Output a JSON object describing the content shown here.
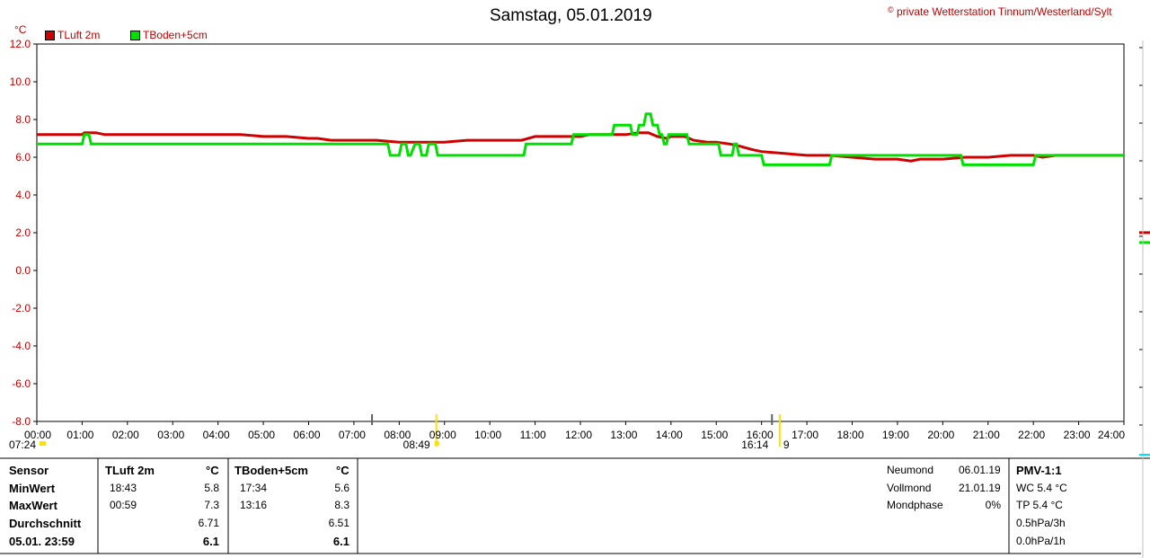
{
  "header": {
    "title": "Samstag, 05.01.2019",
    "copyright_symbol": "©",
    "copyright": "private Wetterstation Tinnum/Westerland/Sylt"
  },
  "chart_data": {
    "type": "line",
    "y_unit": "°C",
    "ylim": [
      -8,
      12
    ],
    "yticks": [
      "12.0",
      "10.0",
      "8.0",
      "6.0",
      "4.0",
      "2.0",
      "0.0",
      "-2.0",
      "-4.0",
      "-6.0",
      "-8.0"
    ],
    "xlim_hours": [
      0,
      24
    ],
    "xticks": [
      "00:00",
      "01:00",
      "02:00",
      "03:00",
      "04:00",
      "05:00",
      "06:00",
      "07:00",
      "08:00",
      "09:00",
      "10:00",
      "11:00",
      "12:00",
      "13:00",
      "14:00",
      "15:00",
      "16:00",
      "17:00",
      "18:00",
      "19:00",
      "20:00",
      "21:00",
      "22:00",
      "23:00",
      "24:00"
    ],
    "grid": true,
    "zero_line_color": "#00e0ff",
    "time_markers": [
      {
        "label": "07:24",
        "hour": 7.4
      },
      {
        "label": "08:49",
        "hour": 8.82
      },
      {
        "label": "16:14",
        "hour": 16.23
      },
      {
        "label": "9",
        "hour": 16.4
      }
    ],
    "series": [
      {
        "name": "TLuft 2m",
        "color": "#d00000",
        "x": [
          0,
          0.5,
          1,
          1.05,
          1.3,
          1.5,
          2,
          3,
          4,
          4.5,
          5,
          5.5,
          6,
          6.2,
          6.5,
          7,
          7.5,
          8,
          8.5,
          9,
          9.5,
          10,
          10.5,
          10.7,
          11,
          11.5,
          12,
          12.2,
          12.5,
          12.8,
          13,
          13.3,
          13.5,
          13.7,
          13.9,
          14,
          14.3,
          14.5,
          14.8,
          15,
          15.3,
          15.5,
          15.8,
          16,
          16.5,
          17,
          17.5,
          18,
          18.5,
          19,
          19.3,
          19.5,
          20,
          20.5,
          20.7,
          21,
          21.5,
          22,
          22.2,
          22.5,
          23,
          23.5,
          24
        ],
        "y": [
          7.2,
          7.2,
          7.2,
          7.3,
          7.3,
          7.2,
          7.2,
          7.2,
          7.2,
          7.2,
          7.1,
          7.1,
          7.0,
          7.0,
          6.9,
          6.9,
          6.9,
          6.8,
          6.8,
          6.8,
          6.9,
          6.9,
          6.9,
          6.9,
          7.1,
          7.1,
          7.1,
          7.2,
          7.2,
          7.2,
          7.2,
          7.3,
          7.3,
          7.1,
          7.0,
          7.1,
          7.1,
          6.9,
          6.8,
          6.8,
          6.7,
          6.6,
          6.4,
          6.3,
          6.2,
          6.1,
          6.1,
          6.0,
          5.9,
          5.9,
          5.8,
          5.9,
          5.9,
          6.0,
          6.0,
          6.0,
          6.1,
          6.1,
          6.0,
          6.1,
          6.1,
          6.1,
          6.1
        ]
      },
      {
        "name": "TBoden+5cm",
        "color": "#00e000",
        "x": [
          0,
          1.0,
          1.05,
          1.15,
          1.2,
          7.75,
          7.8,
          8.0,
          8.05,
          8.15,
          8.2,
          8.25,
          8.35,
          8.45,
          8.5,
          8.6,
          8.65,
          8.8,
          8.85,
          10.75,
          10.8,
          11.8,
          11.85,
          12.7,
          12.75,
          13.1,
          13.15,
          13.25,
          13.3,
          13.4,
          13.45,
          13.55,
          13.6,
          13.7,
          13.75,
          13.8,
          13.85,
          13.9,
          13.95,
          14.35,
          14.4,
          15.05,
          15.1,
          15.35,
          15.4,
          15.45,
          15.5,
          16.0,
          16.05,
          17.5,
          17.55,
          20.4,
          20.45,
          22.0,
          22.05,
          22.15,
          22.2,
          24
        ],
        "y": [
          6.7,
          6.7,
          7.2,
          7.2,
          6.7,
          6.7,
          6.1,
          6.1,
          6.7,
          6.7,
          6.1,
          6.1,
          6.7,
          6.7,
          6.1,
          6.1,
          6.7,
          6.7,
          6.1,
          6.1,
          6.7,
          6.7,
          7.2,
          7.2,
          7.7,
          7.7,
          7.2,
          7.2,
          7.7,
          7.7,
          8.3,
          8.3,
          7.7,
          7.7,
          7.2,
          7.2,
          6.7,
          6.7,
          7.2,
          7.2,
          6.7,
          6.7,
          6.1,
          6.1,
          6.7,
          6.7,
          6.1,
          6.1,
          5.6,
          5.6,
          6.1,
          6.1,
          5.6,
          5.6,
          6.1,
          6.1,
          6.1,
          6.1
        ]
      }
    ]
  },
  "table": {
    "labels": [
      "Sensor",
      "MinWert",
      "MaxWert",
      "Durchschnitt",
      "05.01. 23:59"
    ],
    "col1": {
      "name": "TLuft 2m",
      "unit": "°C",
      "min_time": "18:43",
      "min": "5.8",
      "max_time": "00:59",
      "max": "7.3",
      "avg": "6.71",
      "last": "6.1"
    },
    "col2": {
      "name": "TBoden+5cm",
      "unit": "°C",
      "min_time": "17:34",
      "min": "5.6",
      "max_time": "13:16",
      "max": "8.3",
      "avg": "6.51",
      "last": "6.1"
    }
  },
  "moon": {
    "new_label": "Neumond",
    "new_date": "06.01.19",
    "full_label": "Vollmond",
    "full_date": "21.01.19",
    "phase_label": "Mondphase",
    "phase_value": "0%"
  },
  "pmv": {
    "title": "PMV-1:1",
    "wc": "WC 5.4 °C",
    "tp": "TP 5.4 °C",
    "p3h": "0.5hPa/3h",
    "p1h": "0.0hPa/1h"
  }
}
